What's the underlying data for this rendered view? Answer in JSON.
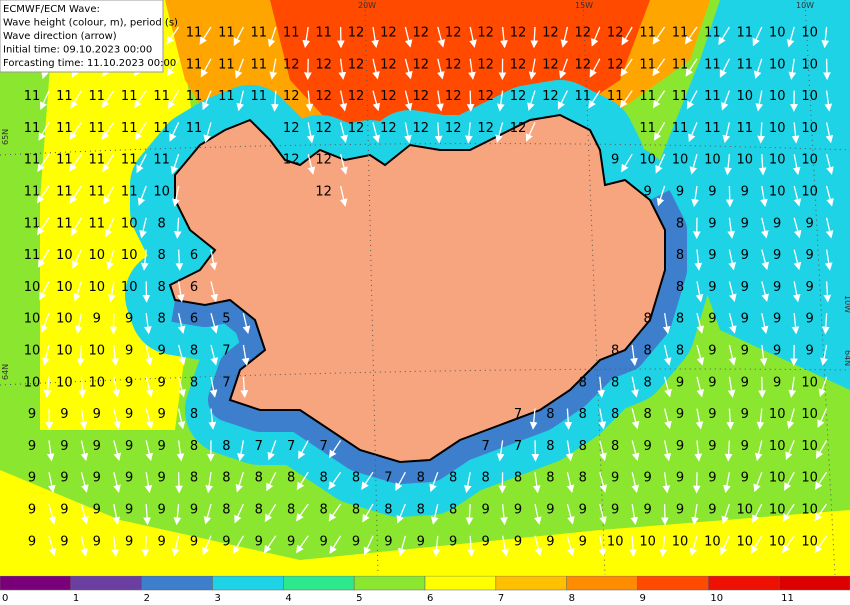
{
  "header": {
    "lines": [
      "ECMWF/ECM Wave:",
      "Wave height (colour, m), period (s)",
      "Wave direction (arrow)",
      "Initial   time:    09.10.2023   00:00",
      "Forcasting time: 11.10.2023 00:00"
    ]
  },
  "map": {
    "grid_labels": [
      "20W",
      "15W",
      "10W",
      "65N",
      "64N",
      "10W",
      "64N"
    ],
    "period_rows": [
      [
        null,
        null,
        null,
        null,
        null,
        11,
        11,
        11,
        11,
        11,
        12,
        12,
        12,
        12,
        12,
        12,
        12,
        12,
        12,
        11,
        11,
        11,
        11,
        10,
        10
      ],
      [
        null,
        null,
        null,
        null,
        null,
        11,
        11,
        11,
        12,
        12,
        12,
        12,
        12,
        12,
        12,
        12,
        12,
        12,
        12,
        11,
        11,
        11,
        11,
        10,
        10
      ],
      [
        11,
        11,
        11,
        11,
        11,
        11,
        11,
        11,
        12,
        12,
        12,
        12,
        12,
        12,
        12,
        12,
        12,
        11,
        11,
        11,
        11,
        11,
        10,
        10,
        10
      ],
      [
        11,
        11,
        11,
        11,
        11,
        11,
        null,
        null,
        12,
        12,
        12,
        12,
        12,
        12,
        12,
        12,
        null,
        null,
        null,
        11,
        11,
        11,
        11,
        10,
        10
      ],
      [
        11,
        11,
        11,
        11,
        11,
        null,
        null,
        null,
        12,
        12,
        null,
        null,
        null,
        null,
        null,
        null,
        null,
        null,
        9,
        10,
        10,
        10,
        10,
        10,
        10
      ],
      [
        11,
        11,
        11,
        11,
        10,
        null,
        null,
        null,
        null,
        12,
        null,
        null,
        null,
        null,
        null,
        null,
        null,
        null,
        null,
        9,
        9,
        9,
        9,
        10,
        10
      ],
      [
        11,
        11,
        11,
        10,
        8,
        null,
        null,
        null,
        null,
        null,
        null,
        null,
        null,
        null,
        null,
        null,
        null,
        null,
        null,
        null,
        8,
        9,
        9,
        9,
        9
      ],
      [
        11,
        10,
        10,
        10,
        8,
        6,
        null,
        null,
        null,
        null,
        null,
        null,
        null,
        null,
        null,
        null,
        null,
        null,
        null,
        null,
        8,
        9,
        9,
        9,
        9
      ],
      [
        10,
        10,
        10,
        10,
        8,
        6,
        null,
        null,
        null,
        null,
        null,
        null,
        null,
        null,
        null,
        null,
        null,
        null,
        null,
        null,
        8,
        9,
        9,
        9,
        9
      ],
      [
        10,
        10,
        9,
        9,
        8,
        6,
        5,
        null,
        null,
        null,
        null,
        null,
        null,
        null,
        null,
        null,
        null,
        null,
        null,
        8,
        8,
        9,
        9,
        9,
        9
      ],
      [
        10,
        10,
        10,
        9,
        9,
        8,
        7,
        null,
        null,
        null,
        null,
        null,
        null,
        null,
        null,
        null,
        null,
        null,
        8,
        8,
        8,
        9,
        9,
        9,
        9
      ],
      [
        10,
        10,
        10,
        9,
        9,
        8,
        7,
        null,
        null,
        null,
        null,
        null,
        null,
        null,
        null,
        null,
        null,
        8,
        8,
        8,
        9,
        9,
        9,
        9,
        10
      ],
      [
        9,
        9,
        9,
        9,
        9,
        8,
        null,
        null,
        null,
        null,
        null,
        null,
        null,
        null,
        null,
        7,
        8,
        8,
        8,
        8,
        9,
        9,
        9,
        10,
        10
      ],
      [
        9,
        9,
        9,
        9,
        9,
        8,
        8,
        7,
        7,
        7,
        null,
        null,
        null,
        null,
        7,
        7,
        8,
        8,
        8,
        9,
        9,
        9,
        9,
        10,
        10
      ],
      [
        9,
        9,
        9,
        9,
        9,
        8,
        8,
        8,
        8,
        8,
        8,
        7,
        8,
        8,
        8,
        8,
        8,
        8,
        9,
        9,
        9,
        9,
        9,
        10,
        10
      ],
      [
        9,
        9,
        9,
        9,
        9,
        9,
        8,
        8,
        8,
        8,
        8,
        8,
        8,
        8,
        9,
        9,
        9,
        9,
        9,
        9,
        9,
        9,
        10,
        10,
        10
      ],
      [
        9,
        9,
        9,
        9,
        9,
        9,
        9,
        9,
        9,
        9,
        9,
        9,
        9,
        9,
        9,
        9,
        9,
        9,
        10,
        10,
        10,
        10,
        10,
        10,
        10
      ]
    ]
  },
  "colorbar": {
    "levels": [
      0,
      1,
      2,
      3,
      4,
      5,
      6,
      7,
      8,
      9,
      10,
      11
    ],
    "colors": [
      "#7a007a",
      "#6b3fa0",
      "#3d7fcc",
      "#1fd3e6",
      "#2ee88c",
      "#8ae62e",
      "#ffff00",
      "#ffc000",
      "#ff8c00",
      "#ff4a00",
      "#ee1000",
      "#dd0000"
    ]
  }
}
